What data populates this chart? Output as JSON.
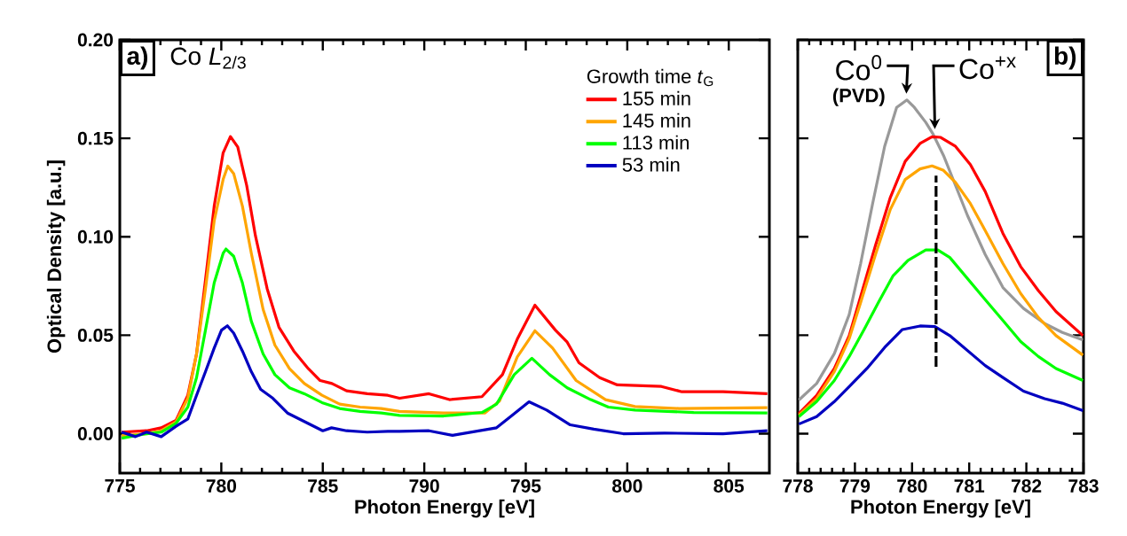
{
  "chart_data": [
    {
      "type": "line",
      "xlabel": "Photon Energy [eV]",
      "ylabel": "Optical Density [a.u.]",
      "legend_title": "Growth time *t*$_{G}$",
      "legend": "top right",
      "annotations": [
        "a)",
        "Co *L*$_{2/3}$"
      ],
      "xlim": [
        775,
        807
      ],
      "ylim": [
        -0.02,
        0.2
      ],
      "xticks": [
        775,
        780,
        785,
        790,
        795,
        800,
        805
      ],
      "yticks": [
        {
          "value": 0,
          "label": "0.00"
        },
        {
          "value": 0.05,
          "label": "0.05"
        },
        {
          "value": 0.1,
          "label": "0.10"
        },
        {
          "value": 0.15,
          "label": "0.15"
        },
        {
          "value": 0.2,
          "label": "0.20"
        }
      ],
      "series": [
        {
          "name": "155 min",
          "color": "#ff0000",
          "x": [
            775.09,
            776.32,
            777.04,
            777.77,
            778.35,
            778.78,
            779.22,
            779.65,
            780.09,
            780.45,
            780.81,
            781.25,
            781.68,
            782.26,
            782.84,
            783.57,
            784.29,
            784.87,
            785.45,
            786.17,
            787.19,
            788.2,
            788.78,
            790.23,
            791.24,
            792.84,
            793.85,
            794.58,
            795.45,
            796.46,
            797.04,
            797.62,
            798.64,
            799.51,
            801.68,
            802.69,
            804.72,
            806.9
          ],
          "values": [
            0.0008,
            0.0015,
            0.003,
            0.0068,
            0.0195,
            0.0405,
            0.0781,
            0.1156,
            0.1426,
            0.1509,
            0.1456,
            0.1261,
            0.1006,
            0.0736,
            0.0541,
            0.042,
            0.033,
            0.027,
            0.0255,
            0.0218,
            0.0203,
            0.0195,
            0.018,
            0.0203,
            0.0173,
            0.0188,
            0.03,
            0.048,
            0.0653,
            0.0526,
            0.0465,
            0.036,
            0.0285,
            0.0248,
            0.024,
            0.0213,
            0.0213,
            0.0203
          ]
        },
        {
          "name": "145 min",
          "color": "#ffa500",
          "x": [
            775.09,
            776.32,
            777.04,
            777.77,
            778.35,
            778.78,
            779.22,
            779.65,
            780.09,
            780.32,
            780.61,
            781.04,
            781.48,
            782.06,
            782.64,
            783.36,
            784.09,
            784.96,
            785.83,
            786.84,
            787.88,
            788.78,
            790.95,
            792.98,
            793.7,
            794.58,
            795.45,
            796.32,
            797.48,
            798.93,
            800.38,
            802.55,
            806.9
          ],
          "values": [
            -0.001,
            0,
            0.0015,
            0.006,
            0.018,
            0.0405,
            0.0736,
            0.1081,
            0.1291,
            0.1359,
            0.1321,
            0.1156,
            0.0916,
            0.0631,
            0.045,
            0.033,
            0.0255,
            0.0195,
            0.015,
            0.0135,
            0.0128,
            0.0113,
            0.0105,
            0.0105,
            0.0165,
            0.039,
            0.0523,
            0.0435,
            0.027,
            0.0173,
            0.0138,
            0.0128,
            0.0132
          ]
        },
        {
          "name": "113 min",
          "color": "#00ff00",
          "x": [
            775.09,
            776.32,
            777.04,
            777.77,
            778.35,
            778.78,
            779.22,
            779.65,
            780.09,
            780.23,
            780.61,
            781.04,
            781.48,
            782.06,
            782.64,
            783.36,
            784.09,
            784.96,
            785.83,
            786.84,
            787.88,
            788.78,
            790.95,
            792.84,
            793.56,
            794.43,
            795.3,
            796.17,
            797.04,
            798.2,
            799.07,
            800.38,
            803.27,
            806.9
          ],
          "values": [
            -0.0023,
            0,
            0.0008,
            0.0053,
            0.0135,
            0.0285,
            0.0526,
            0.0766,
            0.0916,
            0.0938,
            0.0901,
            0.0766,
            0.0571,
            0.0405,
            0.03,
            0.0233,
            0.0203,
            0.0158,
            0.0128,
            0.0113,
            0.0105,
            0.0093,
            0.009,
            0.0108,
            0.015,
            0.03,
            0.0383,
            0.03,
            0.0233,
            0.0173,
            0.0135,
            0.012,
            0.0108,
            0.0105
          ]
        },
        {
          "name": "53 min",
          "color": "#0000c0",
          "x": [
            775.09,
            775.77,
            776.32,
            777.04,
            777.77,
            778.35,
            778.78,
            779.22,
            779.65,
            780.01,
            780.3,
            780.61,
            781.04,
            781.48,
            781.94,
            782.54,
            783.26,
            784.13,
            785.0,
            785.43,
            786.17,
            787.19,
            788.2,
            788.78,
            790.23,
            791.39,
            793.56,
            794.29,
            795.16,
            796.03,
            797.19,
            798.35,
            799.8,
            801.83,
            804.72,
            806.9
          ],
          "values": [
            0.0008,
            -0.0015,
            0.0008,
            -0.0015,
            0.0038,
            0.0075,
            0.0195,
            0.0315,
            0.0435,
            0.0526,
            0.0548,
            0.0511,
            0.042,
            0.0315,
            0.0225,
            0.018,
            0.0105,
            0.006,
            0.0015,
            0.003,
            0.0015,
            0.0008,
            0.0012,
            0.0012,
            0.0015,
            -0.0008,
            0.003,
            0.009,
            0.0162,
            0.012,
            0.0045,
            0.0023,
            0,
            0.0003,
            0,
            0.0015
          ]
        }
      ]
    },
    {
      "type": "line",
      "xlabel": "Photon Energy [eV]",
      "tick_labels": "x",
      "annotations": [
        "b)",
        {
          "text": "Co$^{0}$",
          "x": 779.9,
          "y": 0.17
        },
        "(PVD)",
        {
          "text": "Co$^{+x}$",
          "x": 780.4,
          "y": 0.152
        }
      ],
      "xlim": [
        778,
        783
      ],
      "ylim": [
        -0.02,
        0.2
      ],
      "xticks": [
        778,
        779,
        780,
        781,
        782,
        783
      ],
      "yticks": [
        {
          "value": 0,
          "label": null
        },
        {
          "value": 0.05,
          "label": null
        },
        {
          "value": 0.1,
          "label": null
        },
        {
          "value": 0.15,
          "label": null
        },
        {
          "value": 0.2,
          "label": null
        }
      ],
      "series": [
        {
          "color": "#999999",
          "x": [
            778.02,
            778.33,
            778.64,
            778.9,
            779.1,
            779.31,
            779.52,
            779.73,
            779.91,
            780.04,
            780.24,
            780.37,
            780.55,
            780.76,
            780.97,
            781.28,
            781.59,
            781.95,
            782.32,
            782.63,
            782.99
          ],
          "values": [
            0.0171,
            0.0255,
            0.0407,
            0.0605,
            0.0864,
            0.1169,
            0.1459,
            0.1657,
            0.1695,
            0.1657,
            0.1581,
            0.152,
            0.1413,
            0.1261,
            0.1108,
            0.091,
            0.0742,
            0.0636,
            0.0559,
            0.0514,
            0.0476
          ]
        },
        {
          "color": "#ff0000",
          "x": [
            778.02,
            778.33,
            778.64,
            778.9,
            779.1,
            779.36,
            779.62,
            779.88,
            780.14,
            780.35,
            780.5,
            780.76,
            781.02,
            781.28,
            781.59,
            781.9,
            782.21,
            782.52,
            782.99
          ],
          "values": [
            0.0102,
            0.0194,
            0.0331,
            0.0498,
            0.0697,
            0.0956,
            0.12,
            0.1383,
            0.1474,
            0.1508,
            0.1505,
            0.1459,
            0.1367,
            0.123,
            0.1017,
            0.0849,
            0.0727,
            0.062,
            0.0498
          ]
        },
        {
          "color": "#ffa500",
          "x": [
            778.02,
            778.33,
            778.64,
            778.9,
            779.1,
            779.36,
            779.62,
            779.88,
            780.14,
            780.35,
            780.55,
            780.76,
            781.02,
            781.28,
            781.59,
            781.9,
            782.21,
            782.52,
            782.99
          ],
          "values": [
            0.0095,
            0.0178,
            0.0316,
            0.0483,
            0.0666,
            0.091,
            0.1139,
            0.1291,
            0.1345,
            0.136,
            0.1337,
            0.1276,
            0.1169,
            0.1032,
            0.0864,
            0.0712,
            0.059,
            0.0498,
            0.0399
          ]
        },
        {
          "color": "#00ff00",
          "x": [
            778.02,
            778.33,
            778.64,
            778.9,
            779.16,
            779.41,
            779.67,
            779.93,
            780.24,
            780.45,
            780.66,
            780.97,
            781.28,
            781.59,
            781.9,
            782.21,
            782.52,
            782.99
          ],
          "values": [
            0.0087,
            0.0163,
            0.027,
            0.0392,
            0.0529,
            0.0666,
            0.0803,
            0.088,
            0.0933,
            0.0933,
            0.0895,
            0.0788,
            0.0681,
            0.0575,
            0.0468,
            0.0392,
            0.0331,
            0.027
          ]
        },
        {
          "color": "#0000c0",
          "x": [
            778.02,
            778.33,
            778.64,
            778.9,
            779.21,
            779.52,
            779.83,
            780.14,
            780.4,
            780.66,
            780.97,
            781.28,
            781.59,
            781.95,
            782.32,
            782.63,
            782.99
          ],
          "values": [
            0.0049,
            0.0087,
            0.0163,
            0.0239,
            0.0331,
            0.0438,
            0.0529,
            0.0547,
            0.0544,
            0.0498,
            0.0422,
            0.0346,
            0.0285,
            0.0216,
            0.0178,
            0.0155,
            0.0117
          ]
        },
        {
          "color": "#000000",
          "line_style": "dashed",
          "x": [
            780.42,
            780.42
          ],
          "values": [
            0.034,
            0.131
          ]
        }
      ]
    }
  ]
}
